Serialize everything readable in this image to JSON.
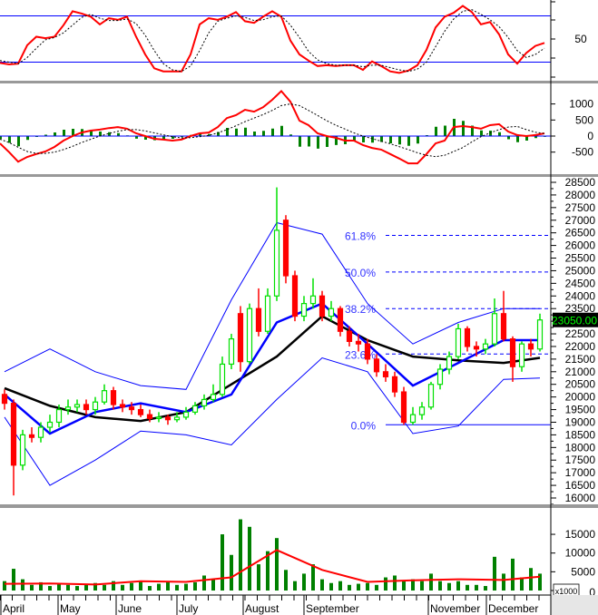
{
  "colors": {
    "up": "#00e000",
    "down": "#ff0000",
    "band": "#0000ff",
    "ma": "#000000",
    "volume": "#008000",
    "volume_ma": "#ff0000",
    "price_tag_bg": "#000000",
    "price_tag_text": "#00ff00"
  },
  "chart_data": [
    {
      "type": "line",
      "panel": "stochastic",
      "yticks": [
        "50"
      ],
      "reference_levels": [
        80,
        20
      ],
      "series": [
        {
          "style": "solid-red",
          "values": [
            19,
            17,
            18,
            42,
            53,
            51,
            53,
            68,
            86,
            83,
            79,
            69,
            77,
            75,
            79,
            53,
            30,
            12,
            8,
            8,
            8,
            30,
            69,
            77,
            75,
            79,
            85,
            73,
            71,
            79,
            86,
            79,
            48,
            30,
            22,
            15,
            16,
            15,
            16,
            16,
            10,
            21,
            15,
            8,
            6,
            9,
            16,
            36,
            65,
            79,
            84,
            93,
            85,
            69,
            72,
            56,
            30,
            18,
            32,
            41,
            45
          ]
        },
        {
          "style": "dashed-black",
          "values": [
            22,
            20,
            18,
            26,
            38,
            49,
            52,
            58,
            68,
            78,
            82,
            77,
            74,
            74,
            76,
            70,
            55,
            35,
            18,
            10,
            8,
            15,
            35,
            58,
            73,
            77,
            80,
            78,
            74,
            75,
            79,
            80,
            68,
            52,
            34,
            23,
            18,
            16,
            16,
            16,
            14,
            16,
            16,
            13,
            10,
            8,
            11,
            20,
            40,
            60,
            76,
            86,
            88,
            82,
            75,
            66,
            52,
            35,
            26,
            30,
            38
          ]
        }
      ]
    },
    {
      "type": "line",
      "panel": "macd",
      "yticks": [
        "1000",
        "500",
        "0",
        "-500"
      ],
      "series": [
        {
          "style": "solid-red",
          "values": [
            -230,
            -500,
            -800,
            -650,
            -560,
            -480,
            -340,
            -140,
            0,
            110,
            170,
            200,
            250,
            280,
            230,
            85,
            0,
            -85,
            -110,
            -140,
            -110,
            0,
            85,
            110,
            280,
            560,
            650,
            820,
            760,
            900,
            1130,
            1400,
            1070,
            480,
            340,
            85,
            0,
            -55,
            -140,
            -140,
            -280,
            -370,
            -420,
            -560,
            -700,
            -850,
            -850,
            -560,
            -230,
            -140,
            280,
            310,
            280,
            230,
            340,
            370,
            140,
            30,
            0,
            30,
            85
          ]
        },
        {
          "style": "dashed-black",
          "values": [
            -100,
            -200,
            -350,
            -480,
            -540,
            -540,
            -500,
            -420,
            -320,
            -200,
            -100,
            0,
            80,
            150,
            200,
            200,
            160,
            100,
            40,
            -20,
            -60,
            -50,
            -20,
            20,
            100,
            200,
            320,
            450,
            560,
            670,
            800,
            950,
            1000,
            950,
            800,
            640,
            480,
            340,
            220,
            100,
            0,
            -80,
            -160,
            -240,
            -330,
            -420,
            -520,
            -600,
            -640,
            -600,
            -480,
            -360,
            -180,
            -20,
            100,
            200,
            280,
            300,
            200,
            120,
            80
          ]
        }
      ],
      "histogram": "difference"
    },
    {
      "type": "candlestick",
      "panel": "price",
      "ylim": [
        16000,
        28500
      ],
      "yticks": [
        "28500",
        "28000",
        "27500",
        "27000",
        "26500",
        "26000",
        "25500",
        "25000",
        "24500",
        "24000",
        "23500",
        "23000",
        "22500",
        "22000",
        "21500",
        "21000",
        "20500",
        "20000",
        "19500",
        "19000",
        "18500",
        "18000",
        "17500",
        "17000",
        "16500",
        "16000"
      ],
      "last_price": "23050.00",
      "ohlc": [
        [
          20100,
          20300,
          19500,
          19750
        ],
        [
          19750,
          19900,
          16100,
          17300
        ],
        [
          17300,
          18700,
          17100,
          18500
        ],
        [
          18500,
          18800,
          18200,
          18400
        ],
        [
          18400,
          19000,
          18200,
          18800
        ],
        [
          18800,
          19300,
          18600,
          19000
        ],
        [
          19000,
          19700,
          18800,
          19500
        ],
        [
          19500,
          19900,
          19300,
          19600
        ],
        [
          19600,
          19900,
          19400,
          19700
        ],
        [
          19700,
          19900,
          19300,
          19500
        ],
        [
          19500,
          20000,
          19300,
          19800
        ],
        [
          19800,
          20500,
          19700,
          20250
        ],
        [
          20250,
          20400,
          19500,
          19700
        ],
        [
          19700,
          19900,
          19400,
          19600
        ],
        [
          19600,
          19800,
          19300,
          19500
        ],
        [
          19500,
          19700,
          19200,
          19300
        ],
        [
          19300,
          19500,
          19000,
          19150
        ],
        [
          19150,
          19400,
          19000,
          19200
        ],
        [
          19200,
          19300,
          18900,
          19100
        ],
        [
          19100,
          19400,
          19000,
          19200
        ],
        [
          19200,
          19600,
          19100,
          19400
        ],
        [
          19400,
          19800,
          19300,
          19650
        ],
        [
          19650,
          20100,
          19500,
          19900
        ],
        [
          19900,
          20500,
          19800,
          20100
        ],
        [
          20100,
          21600,
          20000,
          21300
        ],
        [
          21300,
          22500,
          21100,
          22300
        ],
        [
          23300,
          23600,
          21000,
          21400
        ],
        [
          21400,
          23700,
          21300,
          23500
        ],
        [
          23500,
          24300,
          22400,
          22600
        ],
        [
          22600,
          24300,
          22500,
          24000
        ],
        [
          24000,
          28300,
          23800,
          26600
        ],
        [
          27000,
          27200,
          24500,
          24800
        ],
        [
          24800,
          25000,
          23000,
          23200
        ],
        [
          23200,
          24000,
          23000,
          23700
        ],
        [
          23700,
          24700,
          23500,
          24000
        ],
        [
          24000,
          24200,
          23000,
          23200
        ],
        [
          23200,
          23800,
          23000,
          23500
        ],
        [
          23500,
          23600,
          22400,
          22600
        ],
        [
          22600,
          22800,
          22000,
          22200
        ],
        [
          22200,
          22500,
          21800,
          22100
        ],
        [
          22100,
          22300,
          21300,
          21500
        ],
        [
          21500,
          21700,
          20800,
          21000
        ],
        [
          21000,
          21300,
          20600,
          20800
        ],
        [
          20800,
          21000,
          20000,
          20200
        ],
        [
          20200,
          20400,
          18900,
          19000
        ],
        [
          19000,
          19600,
          18900,
          19300
        ],
        [
          19300,
          19800,
          19100,
          19600
        ],
        [
          19600,
          20600,
          19500,
          20500
        ],
        [
          20500,
          21300,
          20300,
          21100
        ],
        [
          21100,
          21800,
          20900,
          21600
        ],
        [
          21600,
          22900,
          21500,
          22700
        ],
        [
          22700,
          22800,
          21800,
          22000
        ],
        [
          22000,
          22200,
          21600,
          21900
        ],
        [
          21900,
          22300,
          21700,
          22100
        ],
        [
          22100,
          23900,
          22000,
          23300
        ],
        [
          23300,
          24200,
          22200,
          22300
        ],
        [
          22300,
          22400,
          20600,
          21200
        ],
        [
          21200,
          22200,
          21000,
          22100
        ],
        [
          22100,
          22300,
          21600,
          21900
        ],
        [
          21900,
          23300,
          21800,
          23050
        ]
      ],
      "overlay_sample_every": 5,
      "bollinger_upper": [
        21000,
        21900,
        21000,
        20450,
        20300,
        23850,
        26900,
        26450,
        23700,
        22100,
        22950,
        23500,
        23500
      ],
      "bollinger_middle": [
        20100,
        18550,
        19400,
        19750,
        19400,
        20100,
        22950,
        23700,
        22100,
        20450,
        21350,
        22250,
        22250
      ],
      "bollinger_lower": [
        19200,
        16500,
        17500,
        18650,
        18500,
        18100,
        19900,
        21550,
        21000,
        18550,
        18850,
        20700,
        20750
      ],
      "moving_average": [
        20350,
        19650,
        19200,
        19050,
        19400,
        20500,
        21600,
        23200,
        22250,
        21600,
        21450,
        21350,
        21550
      ],
      "fibonacci": [
        {
          "label": "61.8%",
          "price": 26400
        },
        {
          "label": "50.0%",
          "price": 24950
        },
        {
          "label": "38.2%",
          "price": 23500
        },
        {
          "label": "23.6%",
          "price": 21700
        },
        {
          "label": "0.0%",
          "price": 18900
        }
      ]
    },
    {
      "type": "bar",
      "panel": "volume",
      "unit_label": "x1000",
      "yticks": [
        "15000",
        "10000",
        "5000",
        "0"
      ],
      "values": [
        2500,
        5800,
        3000,
        1500,
        2200,
        1200,
        1800,
        1500,
        1200,
        1500,
        2000,
        1500,
        2500,
        1500,
        2000,
        2500,
        1200,
        1800,
        2500,
        1500,
        1800,
        2200,
        4000,
        3000,
        15000,
        9500,
        19000,
        17000,
        7000,
        10500,
        14000,
        5500,
        2500,
        4500,
        7000,
        3000,
        2000,
        2500,
        1500,
        1800,
        2000,
        1500,
        3500,
        4000,
        2500,
        3000,
        2500,
        4500,
        2500,
        2000,
        2500,
        1500,
        1500,
        1200,
        9000,
        4500,
        8500,
        3500,
        6000,
        4500
      ],
      "moving_average": [
        1800,
        1900,
        1600,
        2500,
        2300,
        3500,
        10800,
        5500,
        2300,
        2700,
        3000,
        2800,
        3700
      ]
    }
  ],
  "x_axis": {
    "months": [
      "April",
      "May",
      "June",
      "July",
      "August",
      "September",
      "November",
      "December"
    ]
  }
}
